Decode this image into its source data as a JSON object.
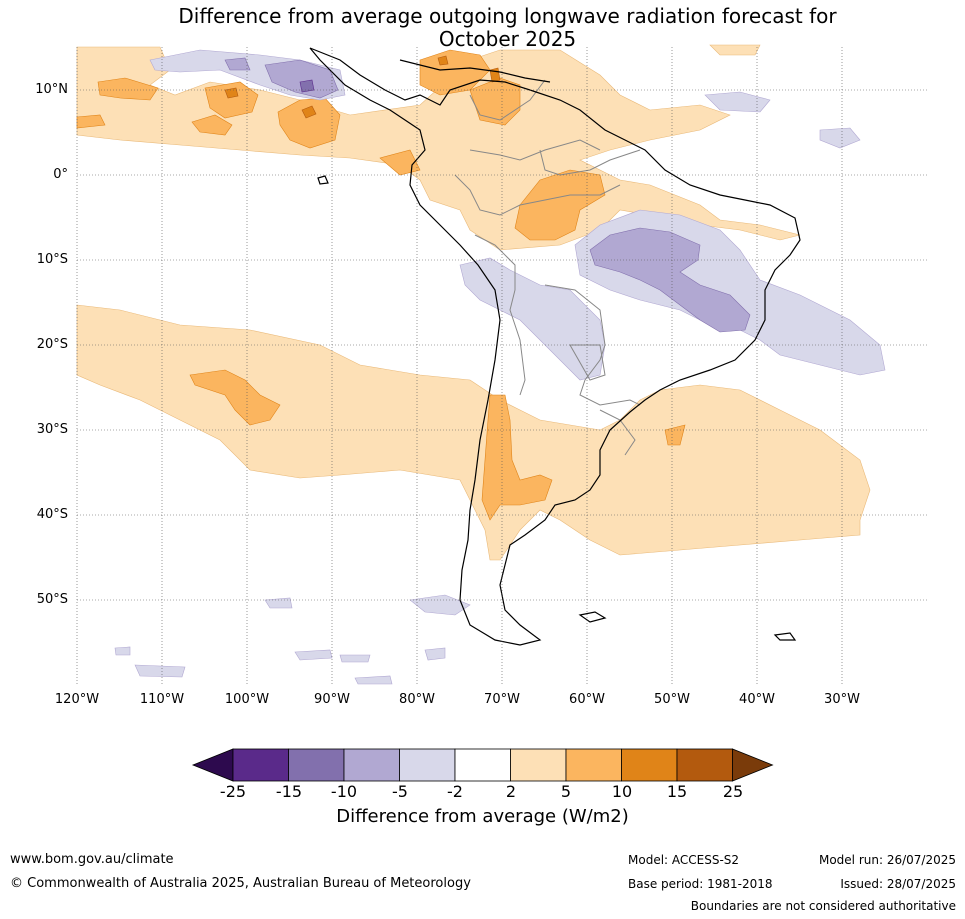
{
  "title": {
    "line1": "Difference from average outgoing longwave radiation forecast for",
    "line2": "October 2025"
  },
  "map": {
    "lat_labels": [
      "10°N",
      "0°",
      "10°S",
      "20°S",
      "30°S",
      "40°S",
      "50°S"
    ],
    "lon_labels": [
      "120°W",
      "110°W",
      "100°W",
      "90°W",
      "80°W",
      "70°W",
      "60°W",
      "50°W",
      "40°W",
      "30°W"
    ],
    "ocean_color": "#ffffff",
    "gridline_style": "dotted"
  },
  "colorbar": {
    "ticks": [
      "-25",
      "-15",
      "-10",
      "-5",
      "-2",
      "2",
      "5",
      "10",
      "15",
      "25"
    ],
    "colors": [
      "#2d0a4e",
      "#5a2a8a",
      "#8270ad",
      "#b1a8d2",
      "#d8d8ea",
      "#ffffff",
      "#fde0b6",
      "#fbb55f",
      "#e08418",
      "#b35a0e",
      "#7a3b0a"
    ],
    "label": "Difference from average (W/m2)"
  },
  "footer": {
    "website": "www.bom.gov.au/climate",
    "copyright": "© Commonwealth of Australia 2025, Australian Bureau of Meteorology",
    "model": "Model: ACCESS-S2",
    "base_period": "Base period: 1981-2018",
    "model_run": "Model run: 26/07/2025",
    "issued": "Issued: 28/07/2025",
    "disclaimer": "Boundaries are not considered authoritative"
  }
}
